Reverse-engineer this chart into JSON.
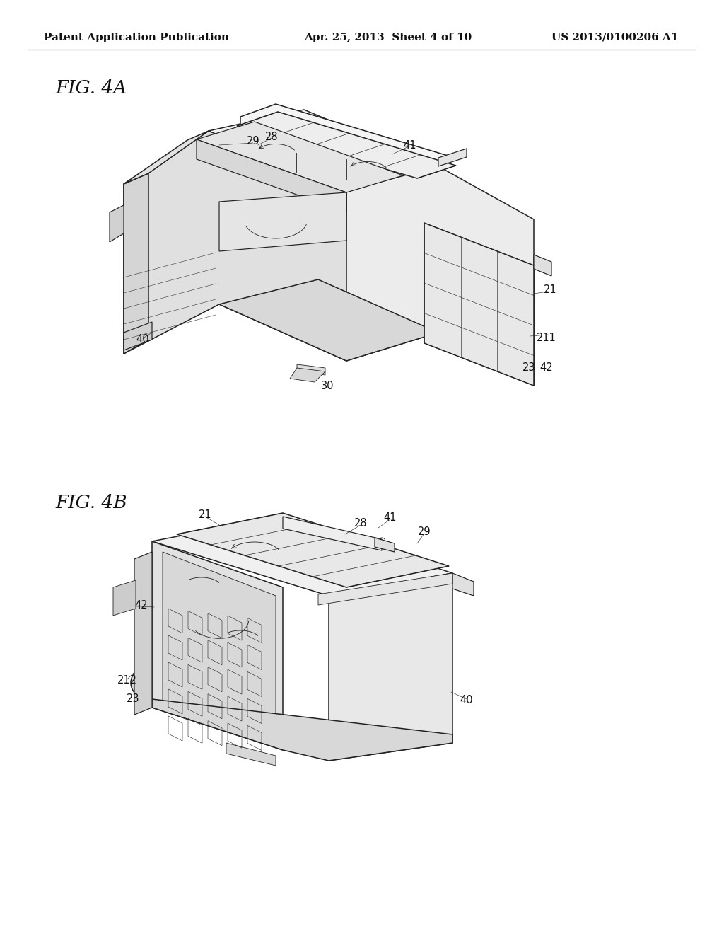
{
  "background_color": "#ffffff",
  "header_left": "Patent Application Publication",
  "header_center": "Apr. 25, 2013  Sheet 4 of 10",
  "header_right": "US 2013/0100206 A1",
  "line_color": "#222222",
  "text_color": "#111111",
  "fig4a_label": "FIG. 4A",
  "fig4b_label": "FIG. 4B",
  "header_fontsize": 11,
  "fig_label_fontsize": 19,
  "ref_fontsize": 11
}
